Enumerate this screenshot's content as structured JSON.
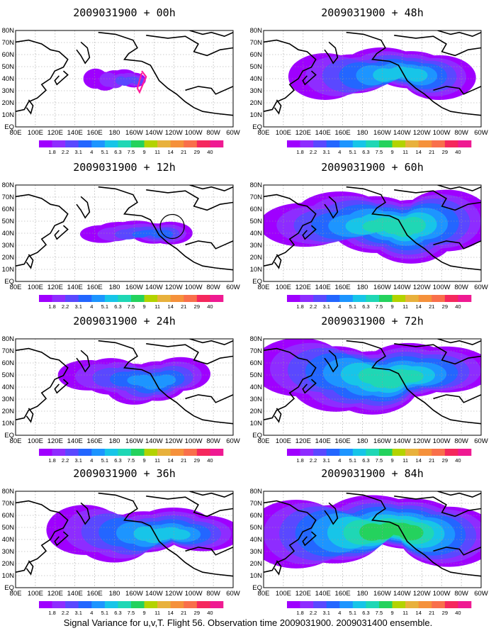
{
  "caption": "Signal Variance for u,v,T. Flight 56. Observation time 2009031900. 2009031400 ensemble.",
  "colors": {
    "levels": [
      "#9f00ff",
      "#8e2cff",
      "#5a48ff",
      "#2366ff",
      "#1d95ff",
      "#17c5e8",
      "#1fd7b5",
      "#24d25d",
      "#b3d300",
      "#e8b13c",
      "#f5913b",
      "#f96f4b",
      "#f5285d",
      "#ef1a92"
    ],
    "coast": "#000000",
    "grid": "#9a9a9a",
    "track": "#ff1e9a",
    "circle": "#000000"
  },
  "colorbar_labels": [
    "1.8",
    "2.2",
    "3.1",
    "4",
    "5.1",
    "6.3",
    "7.5",
    "9",
    "11",
    "14",
    "21",
    "29",
    "40"
  ],
  "axes": {
    "lon_labels": [
      "80E",
      "100E",
      "120E",
      "140E",
      "160E",
      "180",
      "160W",
      "140W",
      "120W",
      "100W",
      "80W",
      "60W"
    ],
    "lat_labels": [
      "80N",
      "70N",
      "60N",
      "50N",
      "40N",
      "30N",
      "20N",
      "10N",
      "EQ"
    ]
  },
  "panels": [
    {
      "title": "2009031900 + 00h"
    },
    {
      "title": "2009031900 + 48h"
    },
    {
      "title": "2009031900 + 12h"
    },
    {
      "title": "2009031900 + 60h"
    },
    {
      "title": "2009031900 + 24h"
    },
    {
      "title": "2009031900 + 72h"
    },
    {
      "title": "2009031900 + 36h"
    },
    {
      "title": "2009031900 + 84h"
    }
  ]
}
